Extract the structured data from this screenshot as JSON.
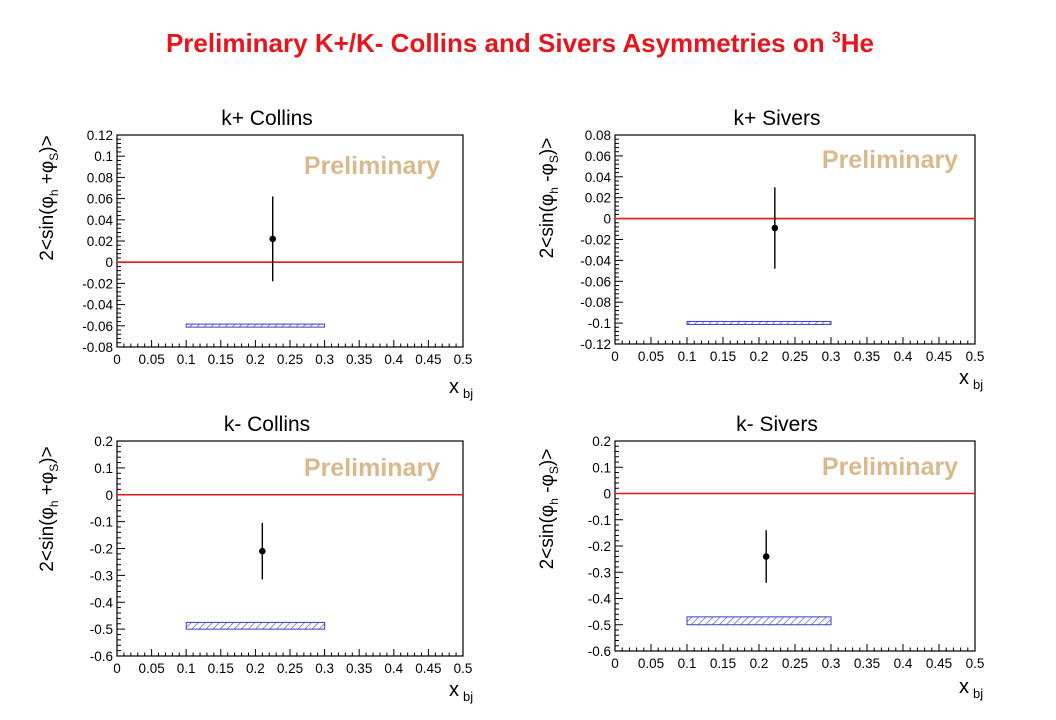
{
  "title": {
    "main": "Preliminary K+/K- Collins and Sivers Asymmetries on ",
    "sup": "3",
    "suffix": "He"
  },
  "colors": {
    "title": "#e8141c",
    "zero_line": "#e8141c",
    "watermark": "#d9b98c",
    "band_stroke": "#3b3bc8",
    "band_hatch": "#6a6ad8",
    "point": "#000000"
  },
  "chart_data": [
    {
      "type": "scatter",
      "title": "k+ Collins",
      "xlabel": "x",
      "xlabel_sub": "bj",
      "ylabel": "2<sin(φh+φS)>",
      "ylabel_parts": {
        "pre": "2<sin(φ",
        "sub1": "h",
        "mid": " +φ",
        "sub2": "S",
        "post": ")>"
      },
      "watermark": "Preliminary",
      "xlim": [
        0,
        0.5
      ],
      "ylim": [
        -0.08,
        0.12
      ],
      "xticks": [
        "0",
        "0.05",
        "0.1",
        "0.15",
        "0.2",
        "0.25",
        "0.3",
        "0.35",
        "0.4",
        "0.45",
        "0.5"
      ],
      "yticks": [
        "-0.08",
        "-0.06",
        "-0.04",
        "-0.02",
        "0",
        "0.02",
        "0.04",
        "0.06",
        "0.08",
        "0.1",
        "0.12"
      ],
      "points": [
        {
          "x": 0.225,
          "y": 0.022,
          "err": 0.04
        }
      ],
      "zero_line": 0,
      "systematic_band": {
        "x": [
          0.1,
          0.3
        ],
        "y": [
          -0.0604,
          -0.0584
        ]
      }
    },
    {
      "type": "scatter",
      "title": "k+ Sivers",
      "xlabel": "x",
      "xlabel_sub": "bj",
      "ylabel": "2<sin(φh-φS)>",
      "ylabel_parts": {
        "pre": "2<sin(φ",
        "sub1": "h",
        "mid": " -φ",
        "sub2": "S",
        "post": ")>"
      },
      "watermark": "Preliminary",
      "xlim": [
        0,
        0.5
      ],
      "ylim": [
        -0.12,
        0.08
      ],
      "xticks": [
        "0",
        "0.05",
        "0.1",
        "0.15",
        "0.2",
        "0.25",
        "0.3",
        "0.35",
        "0.4",
        "0.45",
        "0.5"
      ],
      "yticks": [
        "-0.12",
        "-0.1",
        "-0.08",
        "-0.06",
        "-0.04",
        "-0.02",
        "0",
        "0.02",
        "0.04",
        "0.06",
        "0.08"
      ],
      "points": [
        {
          "x": 0.222,
          "y": -0.009,
          "err": 0.039
        }
      ],
      "zero_line": 0,
      "systematic_band": {
        "x": [
          0.1,
          0.3
        ],
        "y": [
          -0.1008,
          -0.0984
        ]
      }
    },
    {
      "type": "scatter",
      "title": "k- Collins",
      "xlabel": "x",
      "xlabel_sub": "bj",
      "ylabel": "2<sin(φh+φS)>",
      "ylabel_parts": {
        "pre": "2<sin(φ",
        "sub1": "h",
        "mid": " +φ",
        "sub2": "S",
        "post": ")>"
      },
      "watermark": "Preliminary",
      "xlim": [
        0,
        0.5
      ],
      "ylim": [
        -0.6,
        0.2
      ],
      "xticks": [
        "0",
        "0.05",
        "0.1",
        "0.15",
        "0.2",
        "0.25",
        "0.3",
        "0.35",
        "0.4",
        "0.45",
        "0.5"
      ],
      "yticks": [
        "-0.6",
        "-0.5",
        "-0.4",
        "-0.3",
        "-0.2",
        "-0.1",
        "0",
        "0.1",
        "0.2"
      ],
      "points": [
        {
          "x": 0.21,
          "y": -0.21,
          "err": 0.105
        }
      ],
      "zero_line": 0,
      "systematic_band": {
        "x": [
          0.1,
          0.3
        ],
        "y": [
          -0.5,
          -0.475
        ]
      }
    },
    {
      "type": "scatter",
      "title": "k- Sivers",
      "xlabel": "x",
      "xlabel_sub": "bj",
      "ylabel": "2<sin(φh-φS)>",
      "ylabel_parts": {
        "pre": "2<sin(φ",
        "sub1": "h",
        "mid": " -φ",
        "sub2": "S",
        "post": ")>"
      },
      "watermark": "Preliminary",
      "xlim": [
        0,
        0.5
      ],
      "ylim": [
        -0.6,
        0.2
      ],
      "xticks": [
        "0",
        "0.05",
        "0.1",
        "0.15",
        "0.2",
        "0.25",
        "0.3",
        "0.35",
        "0.4",
        "0.45",
        "0.5"
      ],
      "yticks": [
        "-0.6",
        "-0.5",
        "-0.4",
        "-0.3",
        "-0.2",
        "-0.1",
        "0",
        "0.1",
        "0.2"
      ],
      "points": [
        {
          "x": 0.21,
          "y": -0.24,
          "err": 0.1
        }
      ],
      "zero_line": 0,
      "systematic_band": {
        "x": [
          0.1,
          0.3
        ],
        "y": [
          -0.5,
          -0.47
        ]
      }
    }
  ]
}
